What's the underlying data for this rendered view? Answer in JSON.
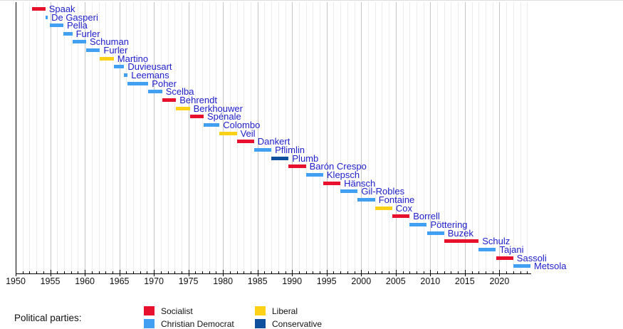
{
  "chart_data": {
    "type": "bar",
    "variant": "timeline",
    "title": "",
    "x_axis": {
      "range_start": 1950,
      "range_end": 2024.6,
      "major_tick_step": 5,
      "minor_tick_step": 1,
      "tick_labels": [
        "1950",
        "1955",
        "1960",
        "1965",
        "1970",
        "1975",
        "1980",
        "1985",
        "1990",
        "1995",
        "2000",
        "2005",
        "2010",
        "2015",
        "2020"
      ]
    },
    "parties": [
      {
        "name": "Socialist",
        "color": "#e8112d"
      },
      {
        "name": "Christian Democrat",
        "color": "#42a0f2"
      },
      {
        "name": "Liberal",
        "color": "#fcd116"
      },
      {
        "name": "Conservative",
        "color": "#0e4f9e"
      }
    ],
    "bars": [
      {
        "label": "Spaak",
        "party": "Socialist",
        "start": 1952.4,
        "end": 1954.3
      },
      {
        "label": "De Gasperi",
        "party": "Christian Democrat",
        "start": 1954.35,
        "end": 1954.65
      },
      {
        "label": "Pella",
        "party": "Christian Democrat",
        "start": 1954.9,
        "end": 1956.9
      },
      {
        "label": "Furler",
        "party": "Christian Democrat",
        "start": 1956.9,
        "end": 1958.2
      },
      {
        "label": "Schuman",
        "party": "Christian Democrat",
        "start": 1958.2,
        "end": 1960.2
      },
      {
        "label": "Furler",
        "party": "Christian Democrat",
        "start": 1960.2,
        "end": 1962.2
      },
      {
        "label": "Martino",
        "party": "Liberal",
        "start": 1962.2,
        "end": 1964.2
      },
      {
        "label": "Duvieusart",
        "party": "Christian Democrat",
        "start": 1964.2,
        "end": 1965.7
      },
      {
        "label": "Leemans",
        "party": "Christian Democrat",
        "start": 1965.7,
        "end": 1966.2
      },
      {
        "label": "Poher",
        "party": "Christian Democrat",
        "start": 1966.2,
        "end": 1969.2
      },
      {
        "label": "Scelba",
        "party": "Christian Democrat",
        "start": 1969.2,
        "end": 1971.2
      },
      {
        "label": "Behrendt",
        "party": "Socialist",
        "start": 1971.2,
        "end": 1973.2
      },
      {
        "label": "Berkhouwer",
        "party": "Liberal",
        "start": 1973.2,
        "end": 1975.2
      },
      {
        "label": "Spénale",
        "party": "Socialist",
        "start": 1975.2,
        "end": 1977.2
      },
      {
        "label": "Colombo",
        "party": "Christian Democrat",
        "start": 1977.2,
        "end": 1979.5
      },
      {
        "label": "Veil",
        "party": "Liberal",
        "start": 1979.5,
        "end": 1982.0
      },
      {
        "label": "Dankert",
        "party": "Socialist",
        "start": 1982.0,
        "end": 1984.5
      },
      {
        "label": "Pflimlin",
        "party": "Christian Democrat",
        "start": 1984.5,
        "end": 1987.0
      },
      {
        "label": "Plumb",
        "party": "Conservative",
        "start": 1987.0,
        "end": 1989.5
      },
      {
        "label": "Barón Crespo",
        "party": "Socialist",
        "start": 1989.5,
        "end": 1992.0
      },
      {
        "label": "Klepsch",
        "party": "Christian Democrat",
        "start": 1992.0,
        "end": 1994.5
      },
      {
        "label": "Hänsch",
        "party": "Socialist",
        "start": 1994.5,
        "end": 1997.0
      },
      {
        "label": "Gil-Robles",
        "party": "Christian Democrat",
        "start": 1997.0,
        "end": 1999.5
      },
      {
        "label": "Fontaine",
        "party": "Christian Democrat",
        "start": 1999.5,
        "end": 2002.0
      },
      {
        "label": "Cox",
        "party": "Liberal",
        "start": 2002.0,
        "end": 2004.5
      },
      {
        "label": "Borrell",
        "party": "Socialist",
        "start": 2004.5,
        "end": 2007.0
      },
      {
        "label": "Pöttering",
        "party": "Christian Democrat",
        "start": 2007.0,
        "end": 2009.5
      },
      {
        "label": "Buzek",
        "party": "Christian Democrat",
        "start": 2009.5,
        "end": 2012.0
      },
      {
        "label": "Schulz",
        "party": "Socialist",
        "start": 2012.0,
        "end": 2017.0
      },
      {
        "label": "Tajani",
        "party": "Christian Democrat",
        "start": 2017.0,
        "end": 2019.5
      },
      {
        "label": "Sassoli",
        "party": "Socialist",
        "start": 2019.5,
        "end": 2022.0
      },
      {
        "label": "Metsola",
        "party": "Christian Democrat",
        "start": 2022.0,
        "end": 2024.5
      }
    ],
    "styles": {
      "name_label_color": "#2020cc",
      "grid_minor_color": "#ececec",
      "grid_major_color": "#c6c6c6",
      "axis_color": "#000000"
    },
    "legend_position": "bottom"
  },
  "legend": {
    "title": "Political parties:",
    "items": [
      {
        "label": "Socialist",
        "color": "#e8112d"
      },
      {
        "label": "Christian Democrat",
        "color": "#42a0f2"
      },
      {
        "label": "Liberal",
        "color": "#fcd116"
      },
      {
        "label": "Conservative",
        "color": "#0e4f9e"
      }
    ]
  }
}
